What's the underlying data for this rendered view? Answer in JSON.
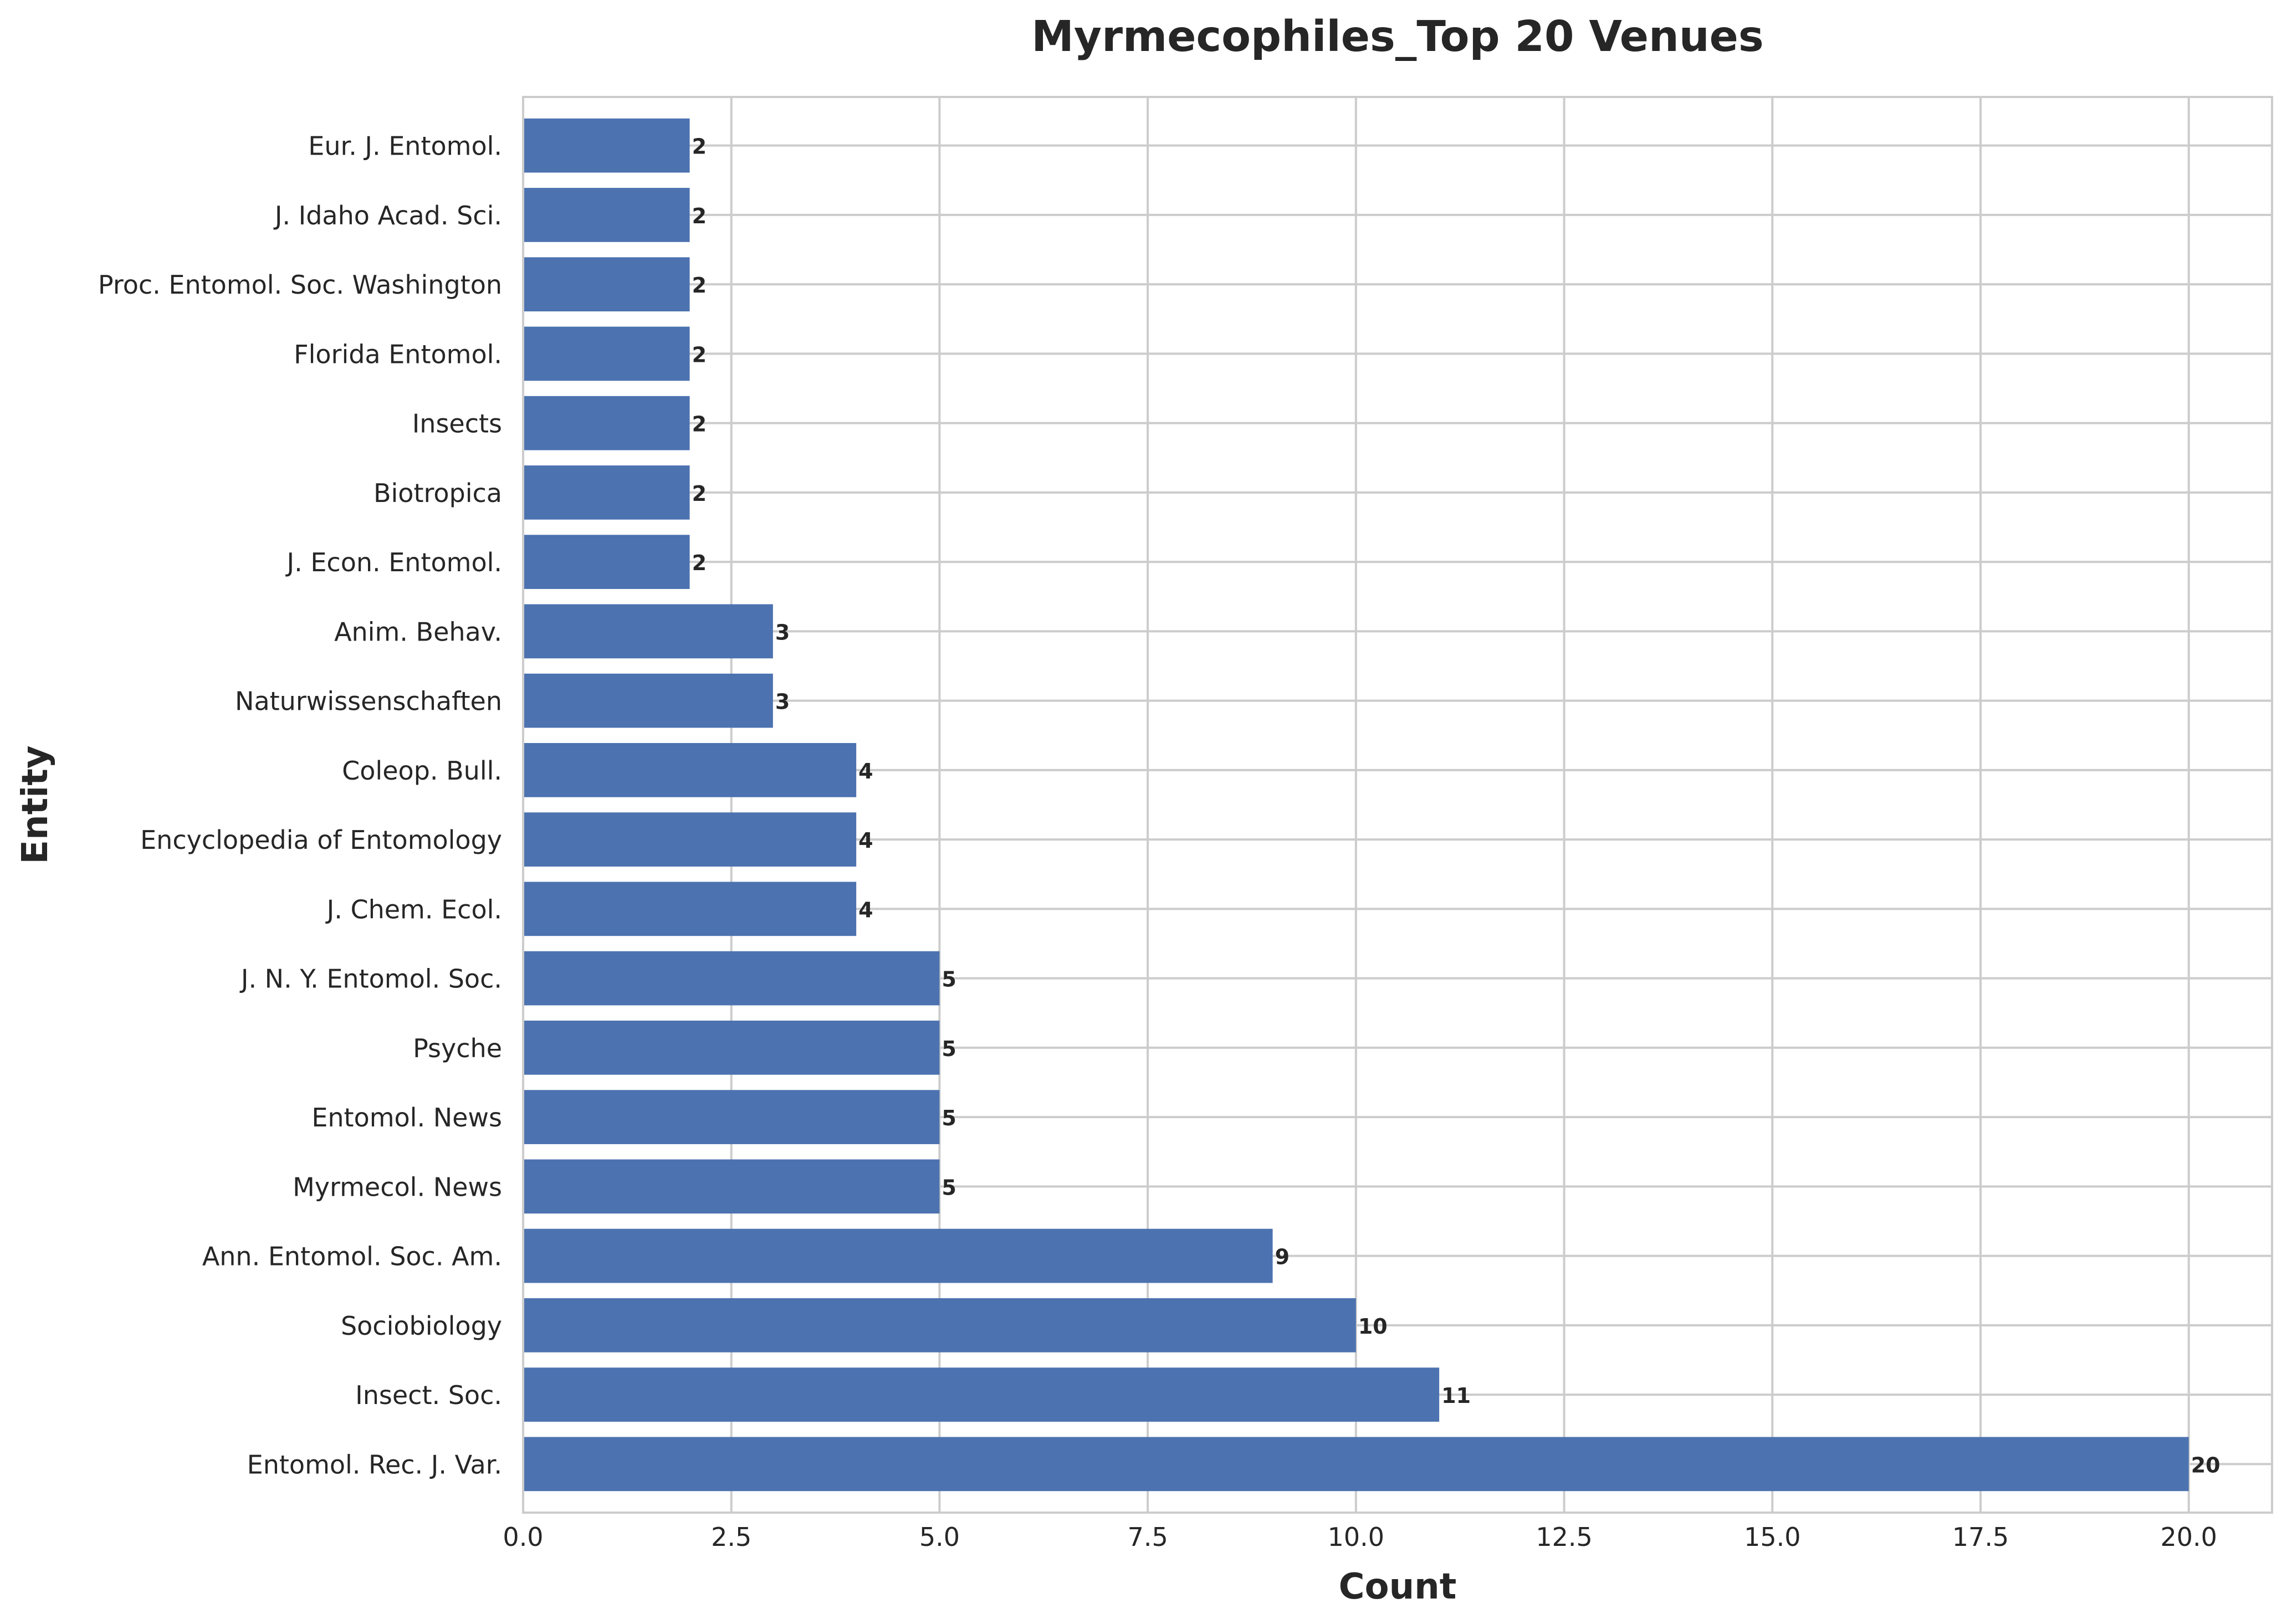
{
  "chart_data": {
    "type": "bar",
    "orientation": "horizontal",
    "title": "Myrmecophiles_Top 20 Venues",
    "xlabel": "Count",
    "ylabel": "Entity",
    "xlim": [
      0,
      21
    ],
    "x_ticks": [
      0,
      2.5,
      5,
      7.5,
      10,
      12.5,
      15,
      17.5,
      20
    ],
    "x_tick_labels": [
      "0.0",
      "2.5",
      "5.0",
      "7.5",
      "10.0",
      "12.5",
      "15.0",
      "17.5",
      "20.0"
    ],
    "grid": true,
    "categories": [
      "Entomol. Rec. J. Var.",
      "Insect. Soc.",
      "Sociobiology",
      "Ann. Entomol. Soc. Am.",
      "Myrmecol. News",
      "Entomol. News",
      "Psyche",
      "J. N. Y. Entomol. Soc.",
      "J. Chem. Ecol.",
      "Encyclopedia of Entomology",
      "Coleop. Bull.",
      "Naturwissenschaften",
      "Anim. Behav.",
      "J. Econ. Entomol.",
      "Biotropica",
      "Insects",
      "Florida Entomol.",
      "Proc. Entomol. Soc. Washington",
      "J. Idaho Acad. Sci.",
      "Eur. J. Entomol."
    ],
    "values": [
      20,
      11,
      10,
      9,
      5,
      5,
      5,
      5,
      4,
      4,
      4,
      3,
      3,
      2,
      2,
      2,
      2,
      2,
      2,
      2
    ],
    "value_labels": [
      "20",
      "11",
      "10",
      "9",
      "5",
      "5",
      "5",
      "5",
      "4",
      "4",
      "4",
      "3",
      "3",
      "2",
      "2",
      "2",
      "2",
      "2",
      "2",
      "2"
    ],
    "bar_color": "#4c72b0"
  }
}
